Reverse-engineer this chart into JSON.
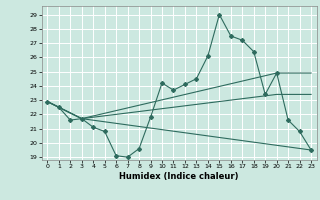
{
  "xlabel": "Humidex (Indice chaleur)",
  "background_color": "#cce8e0",
  "line_color": "#2e6b5e",
  "xlim": [
    -0.5,
    23.5
  ],
  "ylim": [
    18.8,
    29.6
  ],
  "yticks": [
    19,
    20,
    21,
    22,
    23,
    24,
    25,
    26,
    27,
    28,
    29
  ],
  "xticks": [
    0,
    1,
    2,
    3,
    4,
    5,
    6,
    7,
    8,
    9,
    10,
    11,
    12,
    13,
    14,
    15,
    16,
    17,
    18,
    19,
    20,
    21,
    22,
    23
  ],
  "line1_x": [
    0,
    1,
    2,
    3,
    4,
    5,
    6,
    7,
    8,
    9,
    10,
    11,
    12,
    13,
    14,
    15,
    16,
    17,
    18,
    19,
    20,
    21,
    22,
    23
  ],
  "line1_y": [
    22.9,
    22.5,
    21.6,
    21.7,
    21.1,
    20.8,
    19.1,
    19.0,
    19.6,
    21.8,
    24.2,
    23.7,
    24.1,
    24.5,
    26.1,
    29.0,
    27.5,
    27.2,
    26.4,
    23.4,
    24.9,
    21.6,
    20.8,
    19.5
  ],
  "line2_x": [
    0,
    3,
    23
  ],
  "line2_y": [
    22.9,
    21.7,
    19.5
  ],
  "line3_x": [
    0,
    3,
    20,
    23
  ],
  "line3_y": [
    22.9,
    21.7,
    24.9,
    24.9
  ],
  "line4_x": [
    0,
    3,
    20,
    23
  ],
  "line4_y": [
    22.9,
    21.7,
    23.4,
    23.4
  ]
}
